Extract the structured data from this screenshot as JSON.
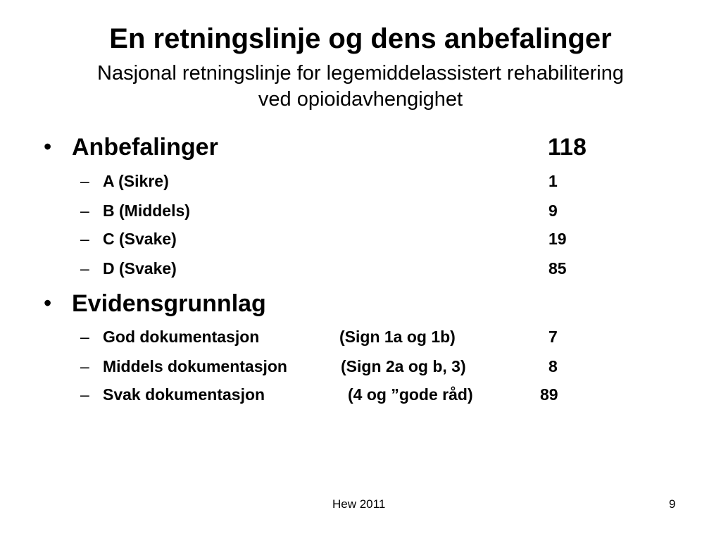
{
  "slide": {
    "title": "En retningslinje og dens anbefalinger",
    "subtitle_line1": "Nasjonal retningslinje for legemiddelassistert rehabilitering",
    "subtitle_line2": "ved opioidavhengighet"
  },
  "sections": [
    {
      "bullet": "•",
      "label": "Anbefalinger",
      "value": "118",
      "items": [
        {
          "dash": "–",
          "label": "A (Sikre)",
          "value": "1"
        },
        {
          "dash": "–",
          "label": "B (Middels)",
          "value": "9"
        },
        {
          "dash": "–",
          "label": "C (Svake)",
          "value": "19"
        },
        {
          "dash": "–",
          "label": "D (Svake)",
          "value": "85"
        }
      ]
    },
    {
      "bullet": "•",
      "label": "Evidensgrunnlag",
      "items": [
        {
          "dash": "–",
          "label": "God dokumentasjon",
          "note": "(Sign 1a og 1b)",
          "value": "7"
        },
        {
          "dash": "–",
          "label": "Middels dokumentasjon",
          "note": "(Sign 2a og b, 3)",
          "value": "8"
        },
        {
          "dash": "–",
          "label": "Svak dokumentasjon",
          "note": "(4 og ”gode råd)",
          "value": "89"
        }
      ]
    }
  ],
  "footer": {
    "center": "Hew 2011",
    "page_number": "9"
  }
}
